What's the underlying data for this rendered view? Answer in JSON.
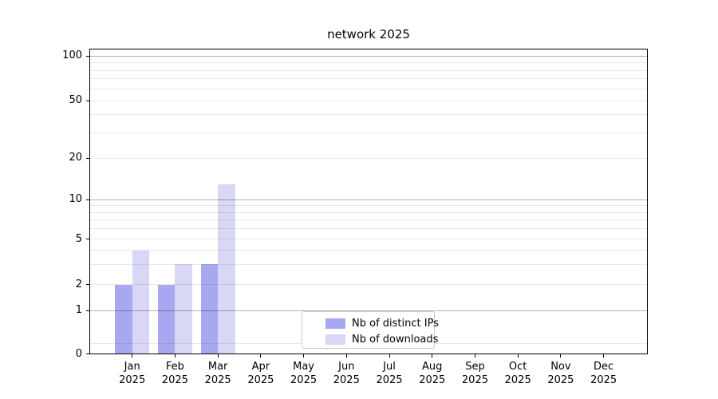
{
  "title": "network 2025",
  "chart_data": {
    "type": "bar",
    "title": "network 2025",
    "categories": [
      "Jan",
      "Feb",
      "Mar",
      "Apr",
      "May",
      "Jun",
      "Jul",
      "Aug",
      "Sep",
      "Oct",
      "Nov",
      "Dec"
    ],
    "year_label": "2025",
    "series": [
      {
        "name": "Nb of distinct IPs",
        "color": "#a8a8f0",
        "values": [
          2,
          2,
          3,
          0,
          0,
          0,
          0,
          0,
          0,
          0,
          0,
          0
        ]
      },
      {
        "name": "Nb of downloads",
        "color": "#d8d8f6",
        "values": [
          4,
          3,
          13,
          0,
          0,
          0,
          0,
          0,
          0,
          0,
          0,
          0
        ]
      }
    ],
    "xlabel": "",
    "ylabel": "",
    "y_axis": {
      "ticks": [
        0,
        1,
        2,
        5,
        10,
        20,
        50,
        100
      ],
      "scale": "symlog-like (0 then log decades)",
      "ylim": [
        0,
        115
      ]
    },
    "grid": "horizontal, minor light + major gray at 1/10/100",
    "legend_position": "inside bottom-center"
  },
  "legend": {
    "items": [
      {
        "label": "Nb of distinct IPs",
        "color": "#a8a8f0"
      },
      {
        "label": "Nb of downloads",
        "color": "#d8d8f6"
      }
    ]
  }
}
